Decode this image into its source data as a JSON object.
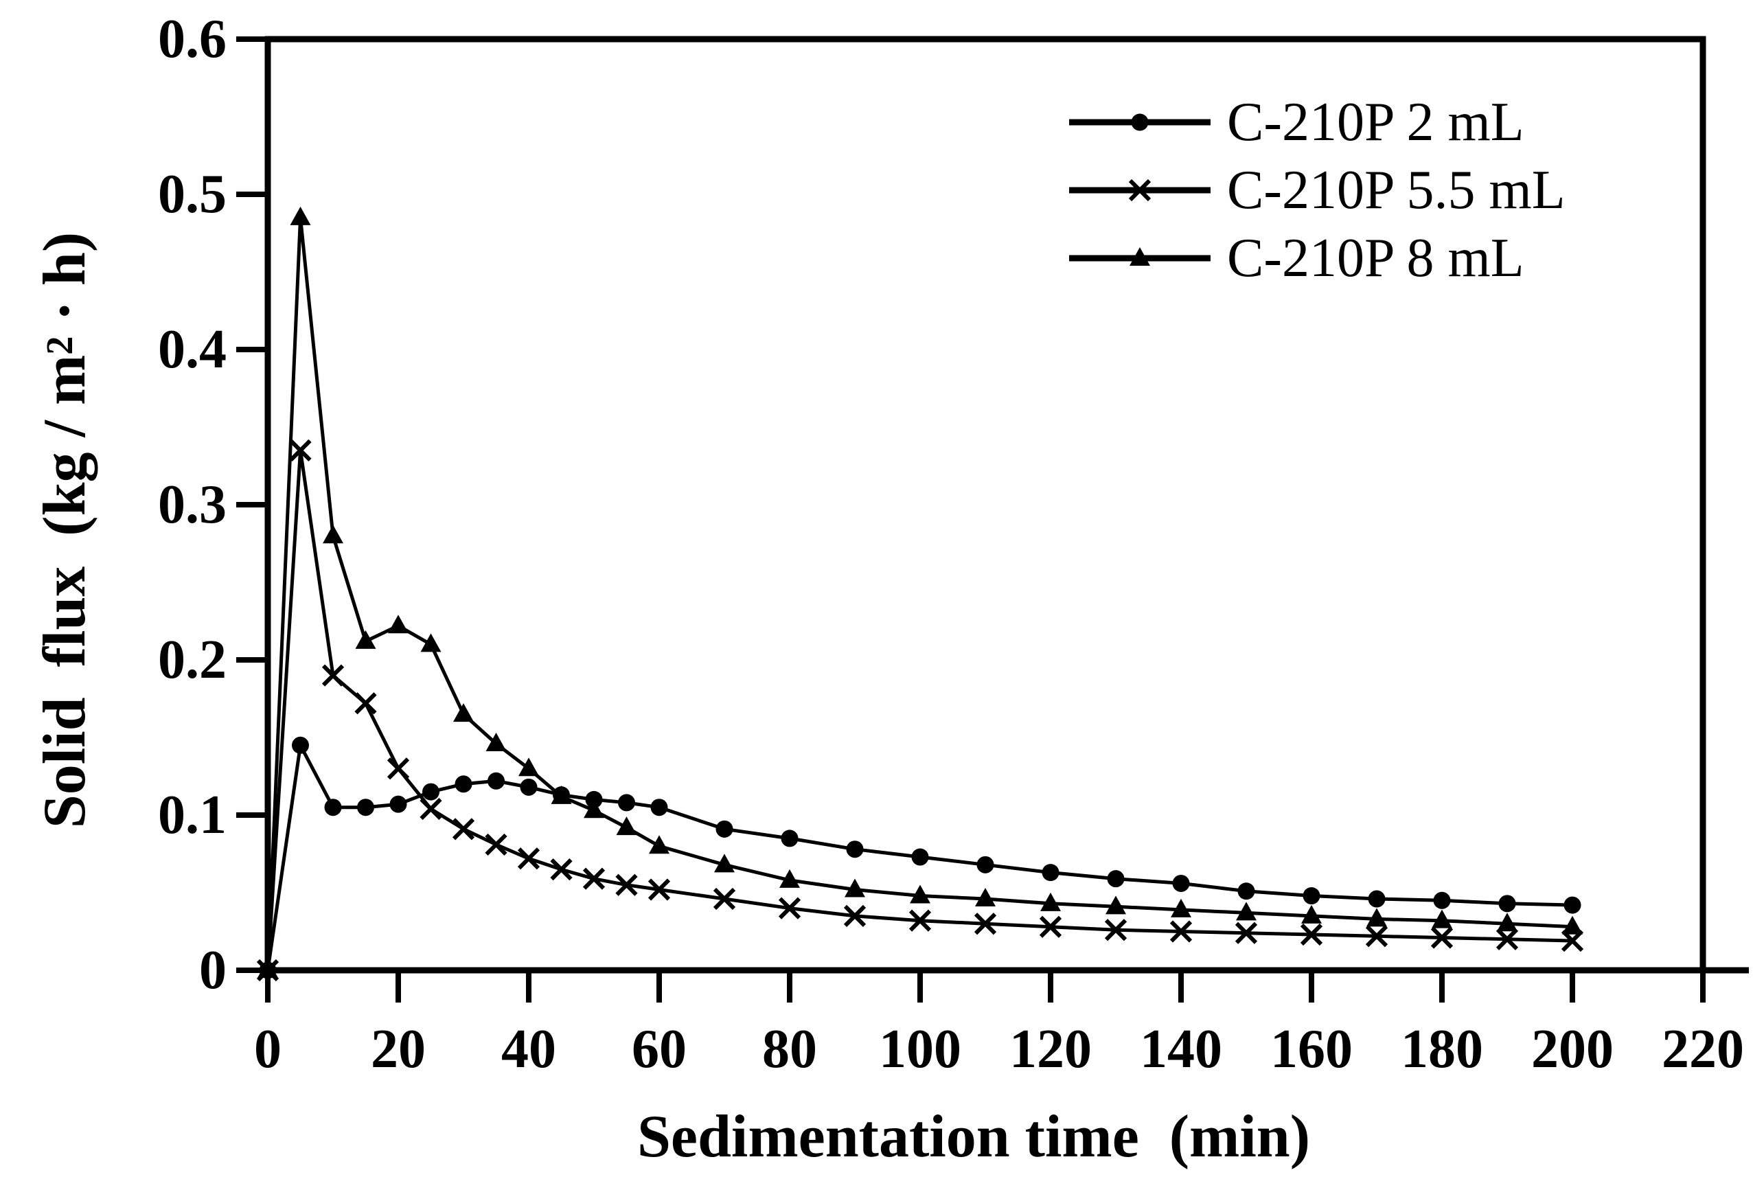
{
  "figure": {
    "background": "#ffffff",
    "x_axis": {
      "title": "Sedimentation time  (min)",
      "min": 0,
      "max": 220,
      "tick_step": 20,
      "tick_labels": [
        "0",
        "20",
        "40",
        "60",
        "80",
        "100",
        "120",
        "140",
        "160",
        "180",
        "200",
        "220"
      ]
    },
    "y_axis": {
      "title_prefix": "Solid  flux  (kg / m",
      "title_sup": "2",
      "title_suffix": " · h)",
      "min": 0,
      "max": 0.6,
      "tick_step": 0.1,
      "tick_labels": [
        "0",
        "0.1",
        "0.2",
        "0.3",
        "0.4",
        "0.5",
        "0.6"
      ]
    },
    "colors": {
      "line": "#000000",
      "marker": "#000000",
      "text": "#000000",
      "frame": "#000000"
    }
  },
  "chart_data": {
    "type": "line",
    "title": "",
    "xlabel": "Sedimentation time (min)",
    "ylabel": "Solid flux (kg / m2 · h)",
    "xlim": [
      0,
      220
    ],
    "ylim": [
      0,
      0.6
    ],
    "grid": false,
    "legend_position": "top-right",
    "x": [
      0,
      5,
      10,
      15,
      20,
      25,
      30,
      35,
      40,
      45,
      50,
      55,
      60,
      70,
      80,
      90,
      100,
      110,
      120,
      130,
      140,
      150,
      160,
      170,
      180,
      190,
      200
    ],
    "series": [
      {
        "name": "C-210P 2 mL",
        "marker": "circle",
        "values": [
          0,
          0.145,
          0.105,
          0.105,
          0.107,
          0.115,
          0.12,
          0.122,
          0.118,
          0.113,
          0.11,
          0.108,
          0.105,
          0.091,
          0.085,
          0.078,
          0.073,
          0.068,
          0.063,
          0.059,
          0.056,
          0.051,
          0.048,
          0.046,
          0.045,
          0.043,
          0.042
        ]
      },
      {
        "name": "C-210P 5.5 mL",
        "marker": "x",
        "values": [
          0,
          0.335,
          0.19,
          0.172,
          0.13,
          0.104,
          0.091,
          0.081,
          0.072,
          0.065,
          0.059,
          0.055,
          0.052,
          0.046,
          0.04,
          0.035,
          0.032,
          0.03,
          0.028,
          0.026,
          0.025,
          0.024,
          0.023,
          0.022,
          0.021,
          0.02,
          0.019
        ]
      },
      {
        "name": "C-210P 8 mL",
        "marker": "triangle",
        "values": [
          0,
          0.485,
          0.28,
          0.212,
          0.222,
          0.21,
          0.165,
          0.146,
          0.13,
          0.112,
          0.103,
          0.092,
          0.08,
          0.068,
          0.058,
          0.052,
          0.048,
          0.046,
          0.043,
          0.041,
          0.039,
          0.037,
          0.035,
          0.033,
          0.032,
          0.03,
          0.028
        ]
      }
    ]
  }
}
